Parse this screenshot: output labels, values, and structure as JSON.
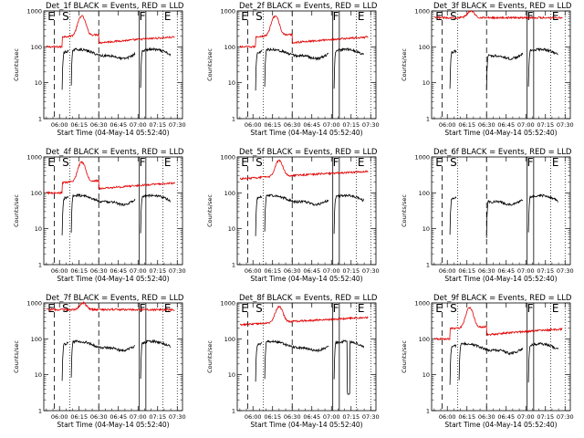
{
  "colors": {
    "events": "#000000",
    "lld": "#e00000",
    "axes": "#000000",
    "background": "#ffffff"
  },
  "chart_data": {
    "type": "line",
    "layout": "3x3 grid of panels",
    "scale": "log",
    "ylim": [
      1,
      1000
    ],
    "y_ticks": [
      1,
      10,
      100,
      1000
    ],
    "y_tick_labels": [
      "1",
      "10",
      "100",
      "1000"
    ],
    "x_tick_labels": [
      "06:00",
      "06:15",
      "06:30",
      "06:45",
      "07:00",
      "07:15",
      "07:30"
    ],
    "markers": [
      "E",
      "S",
      "F",
      "E"
    ],
    "panels": [
      {
        "title": "Det_1f BLACK = Events, RED = LLD",
        "ylabel": "Counts/sec",
        "xlabel": "Start Time (04-May-14 05:52:40)",
        "lld_mode": "flare",
        "events_profile": "normal"
      },
      {
        "title": "Det_2f BLACK = Events, RED = LLD",
        "ylabel": "Counts/sec",
        "xlabel": "Start Time (04-May-14 05:52:40)",
        "lld_mode": "flare",
        "events_profile": "normal"
      },
      {
        "title": "Det_3f BLACK = Events, RED = LLD",
        "ylabel": "Counts/sec",
        "xlabel": "Start Time (04-May-14 05:52:40)",
        "lld_mode": "high",
        "events_profile": "gappy"
      },
      {
        "title": "Det_4f BLACK = Events, RED = LLD",
        "ylabel": "Counts/sec",
        "xlabel": "Start Time (04-May-14 05:52:40)",
        "lld_mode": "flare",
        "events_profile": "normal"
      },
      {
        "title": "Det_5f BLACK = Events, RED = LLD",
        "ylabel": "Counts/sec",
        "xlabel": "Start Time (04-May-14 05:52:40)",
        "lld_mode": "mid",
        "events_profile": "normal"
      },
      {
        "title": "Det_6f BLACK = Events, RED = LLD",
        "ylabel": "Counts/sec",
        "xlabel": "Start Time (04-May-14 05:52:40)",
        "lld_mode": "none",
        "events_profile": "gappy"
      },
      {
        "title": "Det_7f BLACK = Events, RED = LLD",
        "ylabel": "Counts/sec",
        "xlabel": "Start Time (04-May-14 05:52:40)",
        "lld_mode": "high",
        "events_profile": "normal"
      },
      {
        "title": "Det_8f BLACK = Events, RED = LLD",
        "ylabel": "Counts/sec",
        "xlabel": "Start Time (04-May-14 05:52:40)",
        "lld_mode": "mid",
        "events_profile": "dip"
      },
      {
        "title": "Det_9f BLACK = Events, RED = LLD",
        "ylabel": "Counts/sec",
        "xlabel": "Start Time (04-May-14 05:52:40)",
        "lld_mode": "flare",
        "events_profile": "low"
      }
    ]
  }
}
